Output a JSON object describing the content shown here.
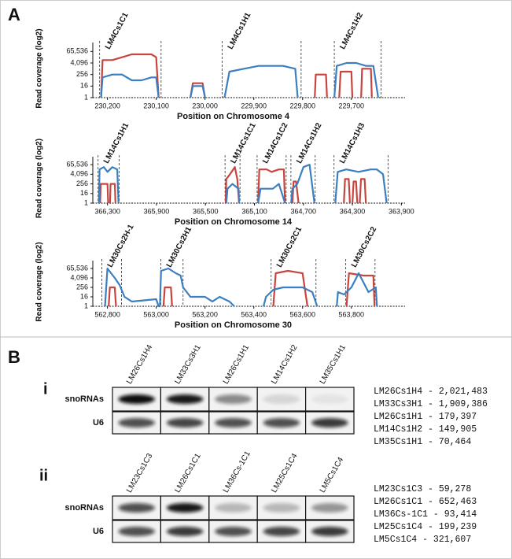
{
  "panel_labels": {
    "a": "A",
    "b": "B"
  },
  "chart_data": [
    {
      "type": "line",
      "y_label": "Read coverage (log2)",
      "x_label": "Position on Chromosome 4",
      "log_base": 2,
      "xlim": [
        230230,
        229590
      ],
      "xticks": [
        {
          "value": 230200,
          "label": "230,200"
        },
        {
          "value": 230100,
          "label": "230,100"
        },
        {
          "value": 230000,
          "label": "230,000"
        },
        {
          "value": 229900,
          "label": "229,900"
        },
        {
          "value": 229800,
          "label": "229,800"
        },
        {
          "value": 229700,
          "label": "229,700"
        }
      ],
      "ylim": [
        1,
        262144
      ],
      "yticks": [
        1,
        16,
        256,
        {
          "value": 4096,
          "label": "4,096"
        },
        {
          "value": 65536,
          "label": "65,536"
        }
      ],
      "regions": [
        {
          "label": "LM4Cs1C1",
          "start": 230216,
          "end": 230090
        },
        {
          "label": "LM4Cs1H1",
          "start": 229965,
          "end": 229803
        },
        {
          "label": "LM4Cs1H2",
          "start": 229735,
          "end": 229639
        }
      ],
      "series": [
        {
          "color": "#c8453f",
          "x": [
            230213,
            230210,
            230190,
            230170,
            230150,
            230130,
            230110,
            230100,
            230095,
            230060,
            230030,
            230025,
            230005,
            230000,
            229900,
            229775,
            229773,
            229752,
            229750,
            229740,
            229725,
            229722,
            229700,
            229698,
            229690,
            229680,
            229678,
            229660,
            229658
          ],
          "values": [
            1,
            8192,
            8192,
            16384,
            32768,
            32768,
            32768,
            16384,
            1,
            null,
            1,
            32,
            32,
            1,
            null,
            1,
            256,
            256,
            1,
            null,
            1,
            512,
            512,
            1,
            null,
            1,
            1024,
            1024,
            1
          ]
        },
        {
          "color": "#3a7fc1",
          "x": [
            230213,
            230210,
            230190,
            230170,
            230150,
            230130,
            230110,
            230100,
            230095,
            230060,
            230030,
            230025,
            230005,
            230000,
            229980,
            229960,
            229950,
            229920,
            229890,
            229860,
            229840,
            229815,
            229810,
            229770,
            229735,
            229730,
            229710,
            229690,
            229670,
            229655,
            229645
          ],
          "values": [
            1,
            128,
            256,
            256,
            64,
            64,
            128,
            128,
            1,
            null,
            1,
            16,
            16,
            1,
            null,
            1,
            512,
            1024,
            2048,
            2048,
            2048,
            1024,
            1,
            null,
            1,
            2048,
            4096,
            4096,
            2048,
            2048,
            1
          ]
        }
      ]
    },
    {
      "type": "line",
      "y_label": "Read coverage (log2)",
      "x_label": "Position on Chromosome 14",
      "log_base": 2,
      "xlim": [
        366420,
        363870
      ],
      "xticks": [
        {
          "value": 366300,
          "label": "366,300"
        },
        {
          "value": 365900,
          "label": "365,900"
        },
        {
          "value": 365500,
          "label": "365,500"
        },
        {
          "value": 365100,
          "label": "365,100"
        },
        {
          "value": 364700,
          "label": "364,700"
        },
        {
          "value": 364300,
          "label": "364,300"
        },
        {
          "value": 363900,
          "label": "363,900"
        }
      ],
      "ylim": [
        1,
        262144
      ],
      "yticks": [
        1,
        16,
        256,
        {
          "value": 4096,
          "label": "4,096"
        },
        {
          "value": 65536,
          "label": "65,536"
        }
      ],
      "regions": [
        {
          "label": "LM14Cs1H1",
          "start": 366377,
          "end": 366204
        },
        {
          "label": "LM14Cs1C1",
          "start": 365340,
          "end": 365218
        },
        {
          "label": "LM14Cs1C2",
          "start": 365078,
          "end": 364841
        },
        {
          "label": "LM14Cs1H2",
          "start": 364802,
          "end": 364604
        },
        {
          "label": "LM14Cs1H3",
          "start": 364450,
          "end": 364009
        }
      ],
      "series": [
        {
          "color": "#c8453f",
          "x": [
            366360,
            366355,
            366300,
            366295,
            366290,
            366280,
            366275,
            366240,
            366235,
            365800,
            365335,
            365330,
            365300,
            365260,
            365240,
            365225,
            365150,
            365070,
            365060,
            365000,
            364960,
            364900,
            364860,
            364850,
            364820,
            364790,
            364780,
            364760,
            364740,
            364500,
            364370,
            364360,
            364330,
            364320,
            364310,
            364300,
            364290,
            364270,
            364260,
            364250,
            364240,
            364230,
            364200,
            364190
          ],
          "values": [
            1,
            256,
            256,
            1,
            null,
            1,
            256,
            256,
            1,
            null,
            1,
            1024,
            4096,
            32768,
            1024,
            1,
            null,
            1,
            16384,
            16384,
            8192,
            16384,
            16384,
            1,
            null,
            1,
            512,
            512,
            1,
            null,
            1,
            1024,
            1024,
            1,
            null,
            1,
            512,
            512,
            1,
            null,
            1,
            1024,
            1024,
            1
          ]
        },
        {
          "color": "#3a7fc1",
          "x": [
            366370,
            366365,
            366330,
            366300,
            366260,
            366220,
            366210,
            365800,
            365330,
            365320,
            365280,
            365230,
            365225,
            365150,
            365070,
            365050,
            364950,
            364900,
            364850,
            364820,
            364800,
            364790,
            364750,
            364700,
            364650,
            364610,
            364500,
            364440,
            364420,
            364350,
            364250,
            364150,
            364100,
            364050,
            364020
          ],
          "values": [
            1,
            16384,
            32768,
            8192,
            32768,
            16384,
            1,
            null,
            1,
            64,
            256,
            64,
            1,
            null,
            1,
            64,
            64,
            256,
            1,
            null,
            1,
            64,
            256,
            32768,
            65536,
            1,
            null,
            1,
            8192,
            16384,
            8192,
            16384,
            16384,
            4096,
            1
          ]
        }
      ]
    },
    {
      "type": "line",
      "y_label": "Read coverage (log2)",
      "x_label": "Position on Chromosome 30",
      "log_base": 2,
      "xlim": [
        562740,
        564020
      ],
      "xticks": [
        {
          "value": 562800,
          "label": "562,800"
        },
        {
          "value": 563000,
          "label": "563,000"
        },
        {
          "value": 563200,
          "label": "563,200"
        },
        {
          "value": 563400,
          "label": "563,400"
        },
        {
          "value": 563600,
          "label": "563,600"
        },
        {
          "value": 563800,
          "label": "563,800"
        }
      ],
      "ylim": [
        1,
        262144
      ],
      "yticks": [
        1,
        16,
        256,
        {
          "value": 4096,
          "label": "4,096"
        },
        {
          "value": 65536,
          "label": "65,536"
        }
      ],
      "regions": [
        {
          "label": "LM30Cs2H-1",
          "start": 562777,
          "end": 562858
        },
        {
          "label": "LM30Cs2H1",
          "start": 563019,
          "end": 563110
        },
        {
          "label": "LM30Cs2C1",
          "start": 563471,
          "end": 563655
        },
        {
          "label": "LM30Cs2C2",
          "start": 563777,
          "end": 563897
        }
      ],
      "series": [
        {
          "color": "#c8453f",
          "x": [
            562805,
            562810,
            562830,
            562835,
            562900,
            563030,
            563035,
            563060,
            563065,
            563300,
            563480,
            563490,
            563540,
            563600,
            563620,
            563700,
            563780,
            563790,
            563850,
            563890,
            563895
          ],
          "values": [
            1,
            256,
            256,
            1,
            null,
            1,
            256,
            256,
            1,
            null,
            1,
            16384,
            32768,
            16384,
            1,
            null,
            1,
            16384,
            8192,
            8192,
            1
          ]
        },
        {
          "color": "#3a7fc1",
          "x": [
            562790,
            562800,
            562830,
            562850,
            562870,
            562900,
            563000,
            563010,
            563015,
            563020,
            563050,
            563080,
            563100,
            563110,
            563140,
            563200,
            563230,
            563260,
            563300,
            563320,
            563400,
            563440,
            563450,
            563480,
            563520,
            563600,
            563640,
            563660,
            563700,
            563740,
            563745,
            563770,
            563800,
            563830,
            563870,
            563900,
            563905
          ],
          "values": [
            1,
            65536,
            4096,
            512,
            16,
            4,
            8,
            1,
            1,
            32768,
            65536,
            16384,
            8192,
            256,
            16,
            16,
            4,
            16,
            4,
            1,
            null,
            1,
            16,
            128,
            256,
            256,
            64,
            1,
            null,
            1,
            64,
            32,
            256,
            16384,
            64,
            256,
            1
          ]
        }
      ]
    }
  ],
  "blots": [
    {
      "label": "i",
      "lanes": [
        "LM26Cs1H4",
        "LM33Cs3H1",
        "LM26Cs1H1",
        "LM14Cs1H2",
        "LM35Cs1H1"
      ],
      "rows": [
        "snoRNAs",
        "U6"
      ],
      "counts": [
        "LM26Cs1H4 - 2,021,483",
        "LM33Cs3H1 - 1,909,386",
        "LM26Cs1H1 - 179,397",
        "LM14Cs1H2 - 149,905",
        "LM35Cs1H1 - 70,464"
      ]
    },
    {
      "label": "ii",
      "lanes": [
        "LM23Cs1C3",
        "LM26Cs1C1",
        "LM36Cs-1C1",
        "LM25Cs1C4",
        "LM5Cs1C4"
      ],
      "rows": [
        "snoRNAs",
        "U6"
      ],
      "counts": [
        "LM23Cs1C3 - 59,278",
        "LM26Cs1C1 - 652,463",
        "LM36Cs-1C1 - 93,414",
        "LM25Cs1C4 - 199,239",
        "LM5Cs1C4 - 321,607"
      ]
    }
  ]
}
